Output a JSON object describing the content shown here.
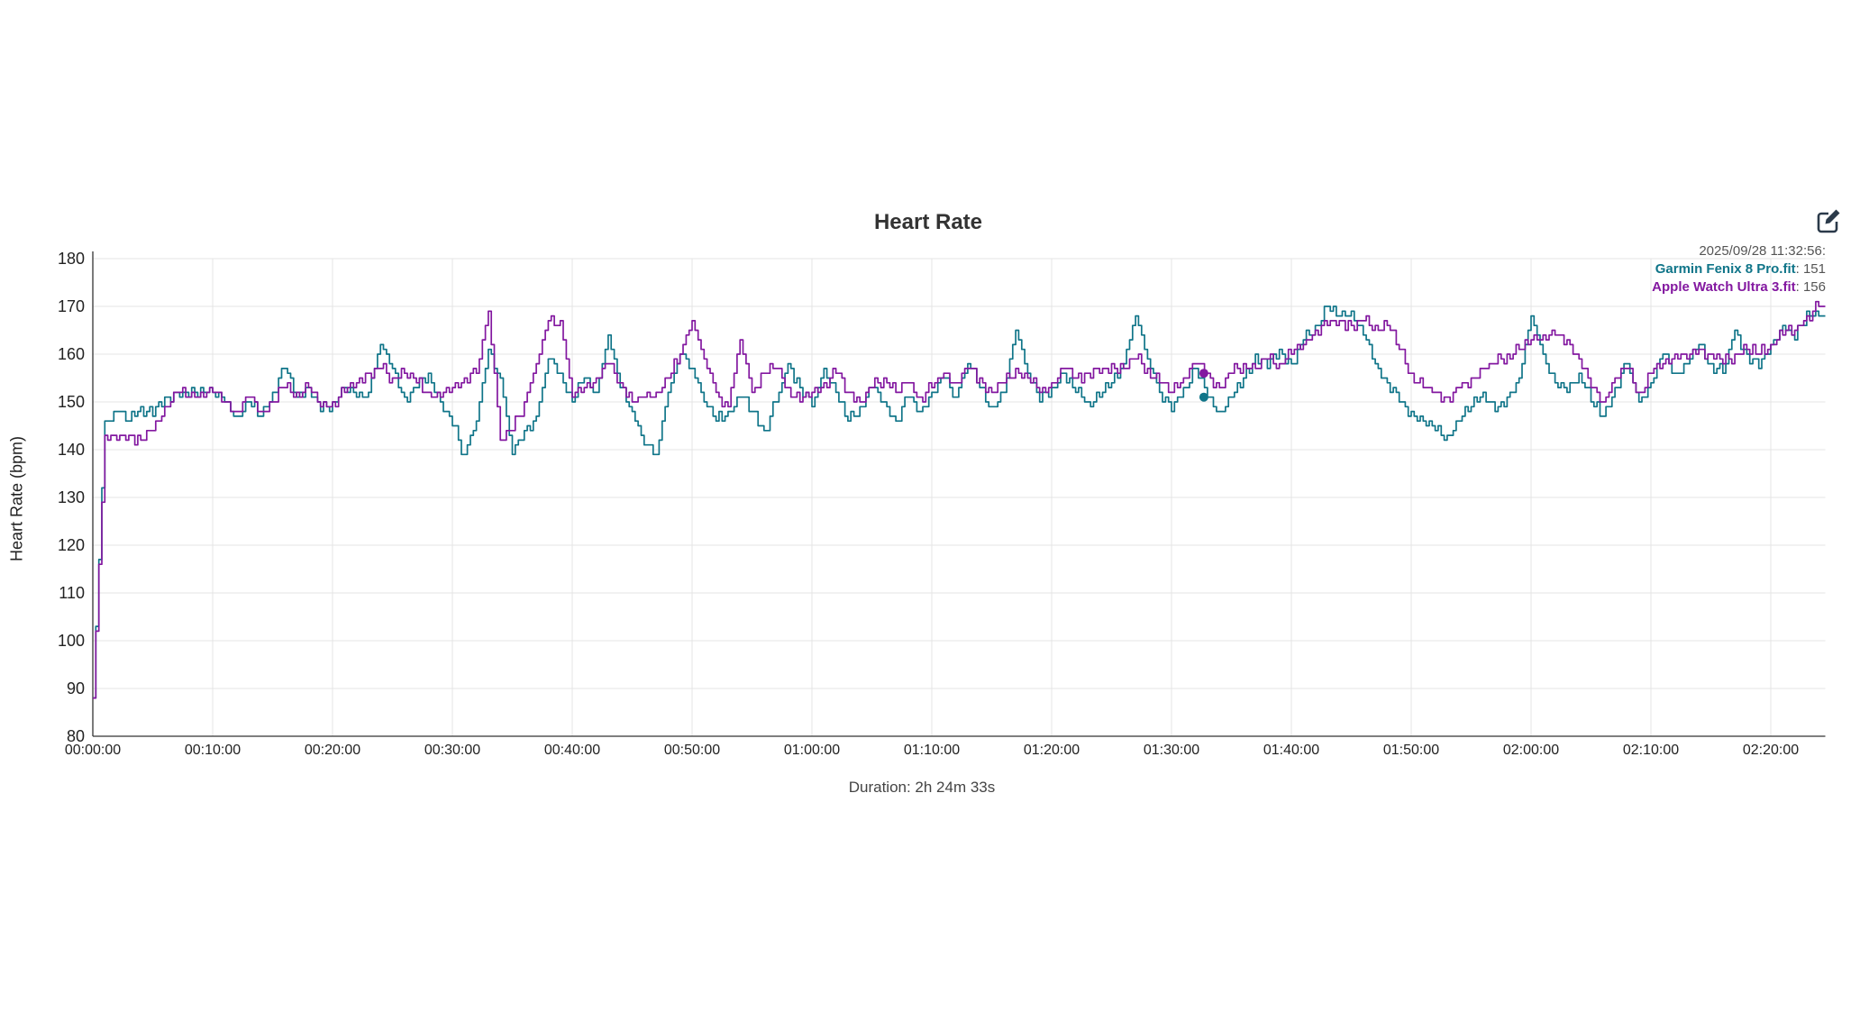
{
  "page": {
    "background": "#ffffff"
  },
  "header": {
    "title": "Heart Rate",
    "edit_icon": "edit-pencil-square-icon",
    "edit_icon_color": "#2b3a4a"
  },
  "legend": {
    "timestamp": "2025/09/28 11:32:56:",
    "items": [
      {
        "label": "Garmin Fenix 8 Pro.fit",
        "value": "151",
        "value_display": ": 151",
        "color": "#107589"
      },
      {
        "label": "Apple Watch Ultra 3.fit",
        "value": "156",
        "value_display": ": 156",
        "color": "#8318a0"
      }
    ]
  },
  "axes": {
    "y_label": "Heart Rate (bpm)",
    "x_caption": "Duration: 2h 24m 33s"
  },
  "colors": {
    "garmin": "#107589",
    "apple": "#8318a0",
    "grid": "#e4e4e4",
    "axis": "#333333"
  },
  "chart_data": {
    "type": "line",
    "title": "Heart Rate",
    "xlabel": "Duration: 2h 24m 33s",
    "ylabel": "Heart Rate (bpm)",
    "x_unit": "minutes",
    "xlim_minutes": [
      0,
      144.55
    ],
    "ylim": [
      80,
      180
    ],
    "y_ticks": [
      80,
      90,
      100,
      110,
      120,
      130,
      140,
      150,
      160,
      170,
      180
    ],
    "x_tick_minutes": [
      0,
      10,
      20,
      30,
      40,
      50,
      60,
      70,
      80,
      90,
      100,
      110,
      120,
      130,
      140
    ],
    "x_tick_labels": [
      "00:00:00",
      "00:10:00",
      "00:20:00",
      "00:30:00",
      "00:40:00",
      "00:50:00",
      "01:00:00",
      "01:10:00",
      "01:20:00",
      "01:30:00",
      "01:40:00",
      "01:50:00",
      "02:00:00",
      "02:10:00",
      "02:20:00"
    ],
    "grid": true,
    "legend_position": "top-right",
    "sample_interval_minutes": 1,
    "series": [
      {
        "name": "Garmin Fenix 8 Pro.fit",
        "color": "#107589",
        "values": [
          88,
          146,
          148,
          146,
          149,
          147,
          151,
          152,
          151,
          153,
          152,
          150,
          147,
          150,
          147,
          152,
          157,
          151,
          153,
          148,
          150,
          153,
          151,
          152,
          162,
          157,
          151,
          153,
          156,
          150,
          145,
          139,
          146,
          161,
          155,
          139,
          144,
          147,
          159,
          156,
          150,
          155,
          152,
          164,
          153,
          148,
          141,
          139,
          152,
          160,
          157,
          150,
          146,
          148,
          151,
          148,
          144,
          150,
          158,
          153,
          149,
          157,
          152,
          146,
          149,
          153,
          150,
          146,
          151,
          148,
          152,
          155,
          151,
          158,
          153,
          149,
          152,
          165,
          156,
          150,
          153,
          156,
          152,
          150,
          151,
          154,
          158,
          168,
          159,
          152,
          148,
          153,
          157,
          151,
          148,
          151,
          155,
          160,
          157,
          161,
          158,
          163,
          166,
          170,
          168,
          169,
          164,
          158,
          154,
          150,
          148,
          146,
          144,
          143,
          146,
          149,
          152,
          148,
          151,
          155,
          168,
          160,
          154,
          152,
          156,
          150,
          147,
          153,
          158,
          150,
          154,
          160,
          156,
          158,
          162,
          158,
          156,
          165,
          160,
          157,
          162,
          166,
          163,
          169,
          168
        ]
      },
      {
        "name": "Apple Watch Ultra 3.fit",
        "color": "#8318a0",
        "values": [
          88,
          143,
          142,
          143,
          142,
          144,
          149,
          152,
          151,
          152,
          152,
          150,
          148,
          151,
          148,
          150,
          153,
          152,
          153,
          149,
          150,
          152,
          154,
          156,
          157,
          155,
          156,
          154,
          152,
          151,
          153,
          155,
          156,
          169,
          142,
          144,
          150,
          158,
          167,
          167,
          151,
          153,
          155,
          158,
          154,
          150,
          151,
          152,
          155,
          160,
          167,
          159,
          152,
          149,
          163,
          152,
          156,
          157,
          153,
          150,
          152,
          154,
          156,
          152,
          150,
          153,
          155,
          152,
          154,
          151,
          153,
          156,
          154,
          157,
          155,
          152,
          154,
          157,
          155,
          152,
          154,
          157,
          155,
          156,
          156,
          158,
          157,
          159,
          157,
          154,
          152,
          155,
          158,
          156,
          153,
          156,
          158,
          157,
          159,
          158,
          160,
          162,
          165,
          166,
          167,
          166,
          167,
          166,
          166,
          161,
          156,
          153,
          152,
          151,
          153,
          155,
          157,
          158,
          160,
          161,
          163,
          164,
          164,
          163,
          159,
          153,
          150,
          155,
          157,
          152,
          156,
          158,
          160,
          159,
          161,
          160,
          158,
          160,
          161,
          160,
          162,
          164,
          165,
          168,
          170
        ]
      }
    ],
    "hover_point": {
      "minute": 92.7,
      "timestamp": "2025/09/28 11:32:56:",
      "values": {
        "Garmin Fenix 8 Pro.fit": 151,
        "Apple Watch Ultra 3.fit": 156
      }
    }
  }
}
